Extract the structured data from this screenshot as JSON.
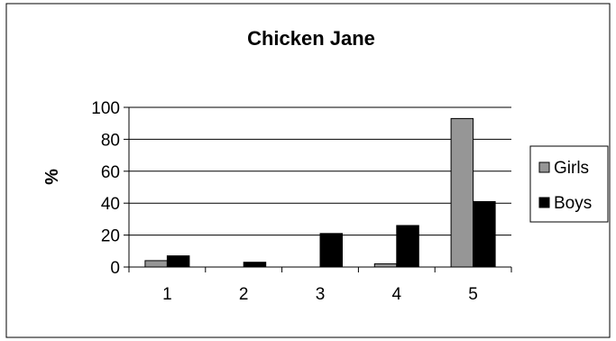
{
  "chart_data": {
    "type": "bar",
    "title": "Chicken Jane",
    "xlabel": "",
    "ylabel": "%",
    "categories": [
      "1",
      "2",
      "3",
      "4",
      "5"
    ],
    "ylim": [
      0,
      100
    ],
    "yticks": [
      "0",
      "20",
      "40",
      "60",
      "80",
      "100"
    ],
    "grid": true,
    "legend_position": "right",
    "series": [
      {
        "name": "Girls",
        "values": [
          4,
          0,
          0,
          2,
          93
        ],
        "color": "#969696"
      },
      {
        "name": "Boys",
        "values": [
          7,
          3,
          21,
          26,
          41
        ],
        "color": "#000000"
      }
    ]
  }
}
